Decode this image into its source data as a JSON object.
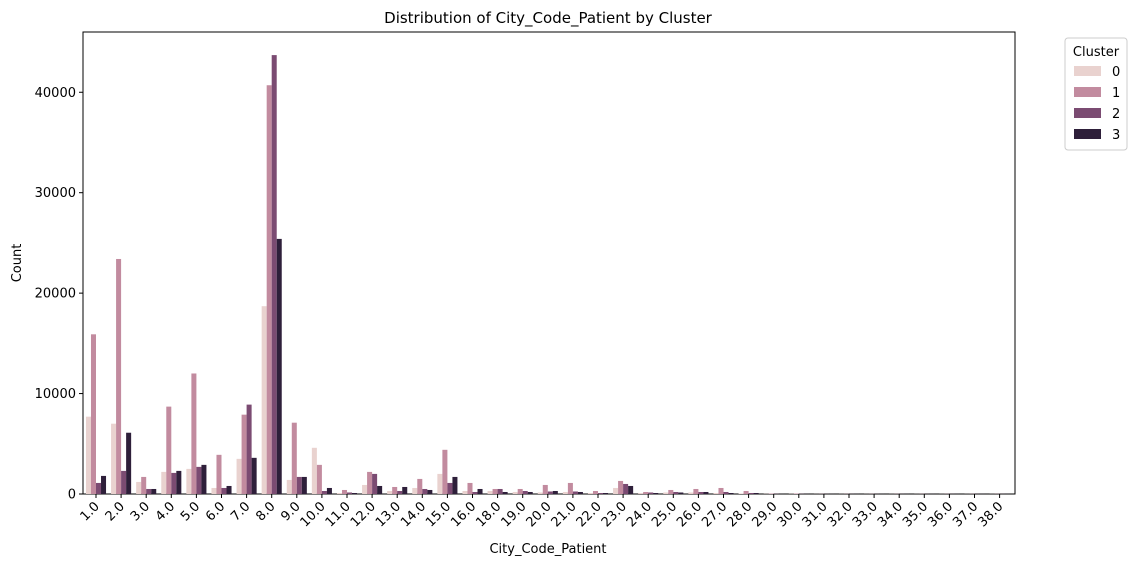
{
  "chart_data": {
    "type": "bar",
    "title": "Distribution of City_Code_Patient by Cluster",
    "xlabel": "City_Code_Patient",
    "ylabel": "Count",
    "ylim": [
      0,
      46000
    ],
    "yticks": [
      0,
      10000,
      20000,
      30000,
      40000
    ],
    "grid": false,
    "legend": {
      "title": "Cluster",
      "placement": "outside-top-right"
    },
    "categories": [
      "1.0",
      "2.0",
      "3.0",
      "4.0",
      "5.0",
      "6.0",
      "7.0",
      "8.0",
      "9.0",
      "10.0",
      "11.0",
      "12.0",
      "13.0",
      "14.0",
      "15.0",
      "16.0",
      "18.0",
      "19.0",
      "20.0",
      "21.0",
      "22.0",
      "23.0",
      "24.0",
      "25.0",
      "26.0",
      "27.0",
      "28.0",
      "29.0",
      "30.0",
      "31.0",
      "32.0",
      "33.0",
      "34.0",
      "35.0",
      "36.0",
      "37.0",
      "38.0"
    ],
    "series": [
      {
        "name": "0",
        "color": "#e9d2cf",
        "values": [
          7700,
          7000,
          1200,
          2200,
          2500,
          600,
          3500,
          18700,
          1400,
          4600,
          100,
          900,
          300,
          600,
          2000,
          300,
          300,
          200,
          150,
          200,
          100,
          600,
          100,
          150,
          150,
          100,
          50,
          20,
          20,
          10,
          10,
          10,
          10,
          10,
          10,
          10,
          10
        ]
      },
      {
        "name": "1",
        "color": "#c28b9f",
        "values": [
          15900,
          23400,
          1700,
          8700,
          12000,
          3900,
          7900,
          40700,
          7100,
          2900,
          400,
          2200,
          700,
          1500,
          4400,
          1100,
          500,
          500,
          900,
          1100,
          300,
          1300,
          200,
          400,
          500,
          600,
          300,
          50,
          50,
          20,
          20,
          20,
          20,
          20,
          20,
          20,
          20
        ]
      },
      {
        "name": "2",
        "color": "#7b4b72",
        "values": [
          1100,
          2300,
          500,
          2100,
          2700,
          600,
          8900,
          43700,
          1700,
          300,
          150,
          2000,
          300,
          500,
          1100,
          200,
          500,
          300,
          250,
          250,
          100,
          1000,
          150,
          200,
          200,
          200,
          100,
          20,
          20,
          10,
          10,
          10,
          10,
          10,
          10,
          10,
          10
        ]
      },
      {
        "name": "3",
        "color": "#2e1f3a",
        "values": [
          1800,
          6100,
          500,
          2300,
          2900,
          800,
          3600,
          25400,
          1700,
          600,
          100,
          800,
          700,
          400,
          1700,
          500,
          200,
          200,
          300,
          200,
          100,
          800,
          100,
          150,
          200,
          100,
          100,
          10,
          10,
          10,
          10,
          10,
          10,
          10,
          10,
          10,
          10
        ]
      }
    ]
  }
}
